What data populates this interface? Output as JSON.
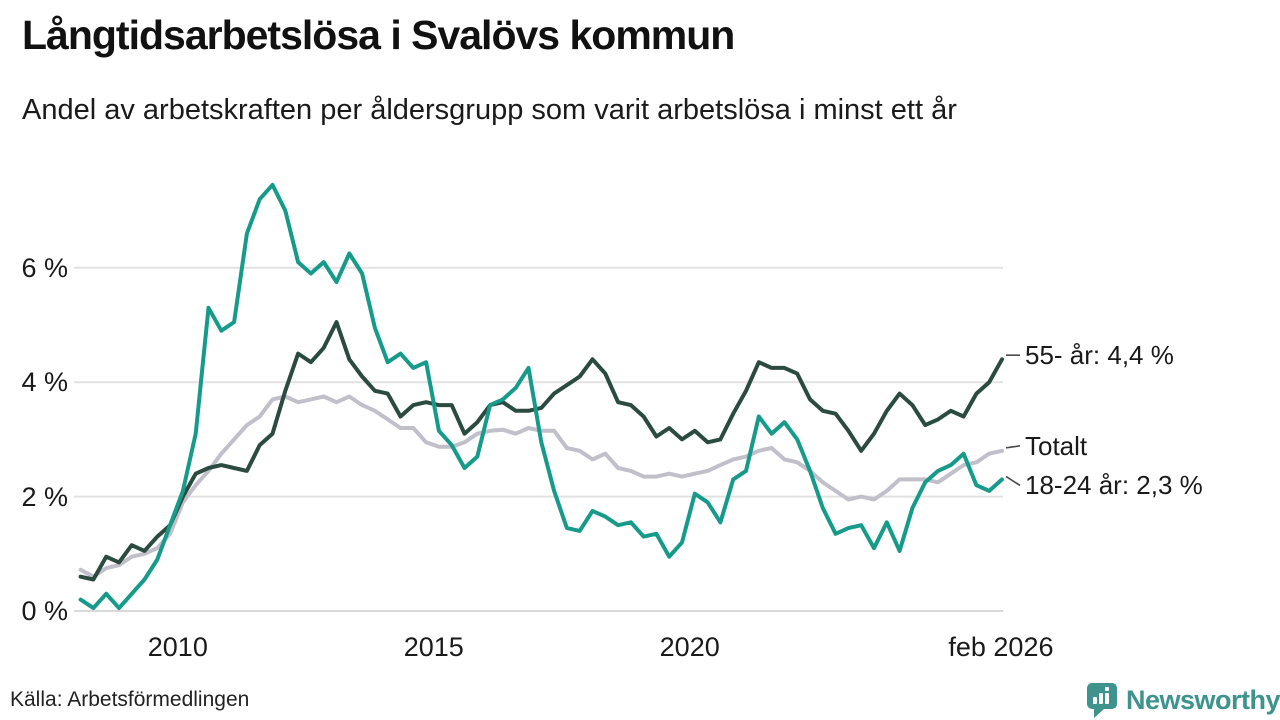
{
  "title": "Långtidsarbetslösa i Svalövs kommun",
  "subtitle": "Andel av arbetskraften per åldersgrupp som varit arbetslösa i minst ett år",
  "source": "Källa: Arbetsförmedlingen",
  "branding": {
    "name": "Newsworthy",
    "color": "#3e948c"
  },
  "colors": {
    "background": "#ffffff",
    "grid": "#e2e2e2",
    "baseline": "#dadada",
    "text": "#1a1a1a",
    "connector": "#4a4a4a",
    "accent_teal": "#169b8b",
    "accent_dark_green": "#2b4b40",
    "accent_gray": "#c1bfc9"
  },
  "chart_data": {
    "type": "line",
    "title": "Långtidsarbetslösa i Svalövs kommun",
    "subtitle": "Andel av arbetskraften per åldersgrupp som varit arbetslösa i minst ett år",
    "xlabel": "",
    "ylabel": "",
    "grid": true,
    "legend_position": "right-annotations",
    "xlim": [
      2008.05,
      2026.12
    ],
    "ylim": [
      0,
      7.71
    ],
    "x_ticks": [
      {
        "v": 2010,
        "label": "2010"
      },
      {
        "v": 2015,
        "label": "2015"
      },
      {
        "v": 2020,
        "label": "2020"
      },
      {
        "v": 2026.08,
        "label": "feb 2026"
      }
    ],
    "y_ticks": [
      {
        "v": 0,
        "label": "0 %"
      },
      {
        "v": 2,
        "label": "2 %"
      },
      {
        "v": 4,
        "label": "4 %"
      },
      {
        "v": 6,
        "label": "6 %"
      }
    ],
    "x": [
      2008.1,
      2008.35,
      2008.6,
      2008.85,
      2009.1,
      2009.35,
      2009.6,
      2009.85,
      2010.1,
      2010.35,
      2010.6,
      2010.85,
      2011.1,
      2011.35,
      2011.6,
      2011.85,
      2012.1,
      2012.35,
      2012.6,
      2012.85,
      2013.1,
      2013.35,
      2013.6,
      2013.85,
      2014.1,
      2014.35,
      2014.6,
      2014.85,
      2015.1,
      2015.35,
      2015.6,
      2015.85,
      2016.1,
      2016.35,
      2016.6,
      2016.85,
      2017.1,
      2017.35,
      2017.6,
      2017.85,
      2018.1,
      2018.35,
      2018.6,
      2018.85,
      2019.1,
      2019.35,
      2019.6,
      2019.85,
      2020.1,
      2020.35,
      2020.6,
      2020.85,
      2021.1,
      2021.35,
      2021.6,
      2021.85,
      2022.1,
      2022.35,
      2022.6,
      2022.85,
      2023.1,
      2023.35,
      2023.6,
      2023.85,
      2024.1,
      2024.35,
      2024.6,
      2024.85,
      2025.1,
      2025.35,
      2025.6,
      2025.85,
      2026.1
    ],
    "series": [
      {
        "name": "Totalt",
        "color": "#c1bfc9",
        "values": [
          0.72,
          0.6,
          0.75,
          0.8,
          0.95,
          1.0,
          1.1,
          1.35,
          1.9,
          2.2,
          2.45,
          2.75,
          3.0,
          3.25,
          3.4,
          3.7,
          3.75,
          3.65,
          3.7,
          3.75,
          3.65,
          3.75,
          3.6,
          3.5,
          3.35,
          3.2,
          3.2,
          2.95,
          2.87,
          2.87,
          2.95,
          3.1,
          3.15,
          3.17,
          3.1,
          3.2,
          3.15,
          3.15,
          2.85,
          2.8,
          2.65,
          2.75,
          2.5,
          2.45,
          2.35,
          2.35,
          2.4,
          2.35,
          2.4,
          2.45,
          2.55,
          2.65,
          2.7,
          2.8,
          2.85,
          2.65,
          2.6,
          2.45,
          2.25,
          2.1,
          1.95,
          2.0,
          1.95,
          2.1,
          2.3,
          2.3,
          2.3,
          2.25,
          2.4,
          2.55,
          2.6,
          2.75,
          2.8
        ]
      },
      {
        "name": "55- år",
        "color": "#2b4b40",
        "values": [
          0.6,
          0.55,
          0.95,
          0.85,
          1.15,
          1.05,
          1.3,
          1.5,
          2.0,
          2.4,
          2.5,
          2.55,
          2.5,
          2.45,
          2.9,
          3.1,
          3.85,
          4.5,
          4.35,
          4.6,
          5.05,
          4.4,
          4.1,
          3.85,
          3.8,
          3.4,
          3.6,
          3.65,
          3.6,
          3.6,
          3.1,
          3.3,
          3.6,
          3.65,
          3.5,
          3.5,
          3.55,
          3.8,
          3.95,
          4.1,
          4.4,
          4.15,
          3.65,
          3.6,
          3.4,
          3.05,
          3.2,
          3.0,
          3.15,
          2.95,
          3.0,
          3.45,
          3.85,
          4.35,
          4.25,
          4.25,
          4.15,
          3.7,
          3.5,
          3.45,
          3.15,
          2.8,
          3.1,
          3.5,
          3.8,
          3.6,
          3.25,
          3.35,
          3.5,
          3.4,
          3.8,
          4.0,
          4.4
        ]
      },
      {
        "name": "18-24 år",
        "color": "#169b8b",
        "values": [
          0.2,
          0.05,
          0.3,
          0.05,
          0.3,
          0.55,
          0.9,
          1.5,
          2.1,
          3.1,
          5.3,
          4.9,
          5.05,
          6.6,
          7.2,
          7.45,
          7.0,
          6.1,
          5.9,
          6.1,
          5.75,
          6.25,
          5.9,
          4.95,
          4.35,
          4.5,
          4.25,
          4.35,
          3.15,
          2.9,
          2.5,
          2.7,
          3.6,
          3.7,
          3.9,
          4.25,
          2.95,
          2.1,
          1.45,
          1.4,
          1.75,
          1.65,
          1.5,
          1.55,
          1.3,
          1.35,
          0.95,
          1.2,
          2.05,
          1.9,
          1.55,
          2.3,
          2.45,
          3.4,
          3.1,
          3.3,
          3.0,
          2.45,
          1.8,
          1.35,
          1.45,
          1.5,
          1.1,
          1.55,
          1.05,
          1.8,
          2.25,
          2.45,
          2.55,
          2.75,
          2.2,
          2.1,
          2.3
        ]
      }
    ],
    "annotations": [
      {
        "text": "55- år: 4,4 %",
        "y": 4.42,
        "dy": 0
      },
      {
        "text": "Totalt",
        "y": 2.8,
        "dy": -2
      },
      {
        "text": "18-24 år: 2,3 %",
        "y": 2.3,
        "dy": 9
      }
    ]
  }
}
